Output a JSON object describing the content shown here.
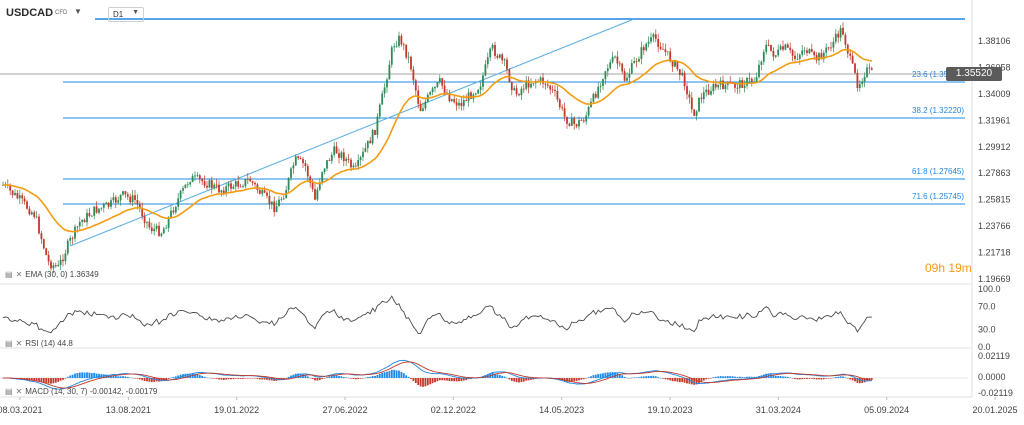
{
  "header": {
    "symbol": "USDCAD",
    "instrument_type": "CFD",
    "timeframe": "D1"
  },
  "timer": {
    "hours": "09",
    "h_unit": "h",
    "minutes": "19",
    "m_unit": "m"
  },
  "colors": {
    "candle_up": "#2e8b57",
    "candle_down": "#c0392b",
    "ema": "#f39c12",
    "fib_line": "#1e88e5",
    "trendline": "#5aaee0",
    "rsi": "#4a4a4a",
    "macd_line": "#1e88e5",
    "signal_line": "#c0392b"
  },
  "main_price": {
    "last_price": "1.35520",
    "last_price_value": 1.3552,
    "y_ticks": [
      "1.38106",
      "1.36058",
      "1.34009",
      "1.31961",
      "1.29912",
      "1.27863",
      "1.25815",
      "1.23766",
      "1.21718",
      "1.19669"
    ],
    "fib_levels": [
      {
        "label": "23.6 (1.35050)",
        "value": 1.3505
      },
      {
        "label": "38.2 (1.32220)",
        "value": 1.3222
      },
      {
        "label": "61.8 (1.27645)",
        "value": 1.27645
      },
      {
        "label": "71.6 (1.25745)",
        "value": 1.25745
      }
    ],
    "top_level": 1.3952,
    "ema_label": "EMA (30, 0)",
    "ema_value": "1.36349"
  },
  "rsi": {
    "label": "RSI (14)",
    "value": "44.8",
    "y_ticks": [
      "100.0",
      "70.0",
      "30.0",
      "0.0"
    ]
  },
  "macd": {
    "label": "MACD (14, 30, 7)",
    "values": "-0.00142, -0.00179",
    "y_ticks": [
      "0.02119",
      "0.0000",
      "-0.02119"
    ]
  },
  "x_axis": {
    "ticks": [
      "08.03.2021",
      "13.08.2021",
      "19.01.2022",
      "27.06.2022",
      "02.12.2022",
      "14.05.2023",
      "19.10.2023",
      "31.03.2024",
      "05.09.2024",
      "20.01.2025"
    ]
  },
  "chart_data": {
    "type": "line",
    "title": "",
    "xlabel": "",
    "ylabel": "",
    "ylim": [
      1.19669,
      1.38106
    ],
    "x": [
      "08.03.2021",
      "13.08.2021",
      "19.01.2022",
      "27.06.2022",
      "02.12.2022",
      "14.05.2023",
      "19.10.2023",
      "31.03.2024",
      "05.09.2024"
    ],
    "series": [
      {
        "name": "",
        "values": [
          1.246,
          1.262,
          1.268,
          1.288,
          1.343,
          1.338,
          1.372,
          1.36,
          1.3552
        ]
      },
      {
        "name": "EMA (30, 0)",
        "values": [
          1.25,
          1.258,
          1.264,
          1.284,
          1.345,
          1.345,
          1.365,
          1.362,
          1.36349
        ]
      }
    ]
  }
}
